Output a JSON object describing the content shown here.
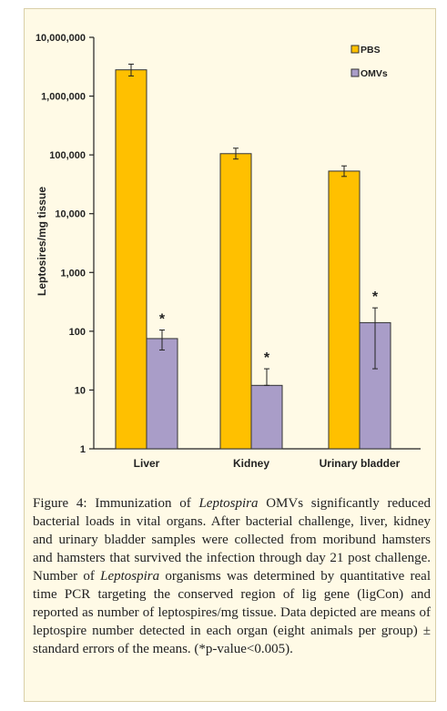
{
  "chart_data": {
    "type": "bar",
    "scale": "log",
    "ylabel": "Leptosires/mg tissue",
    "xlabel": "",
    "ylim": [
      1,
      10000000
    ],
    "yticks": [
      1,
      10,
      100,
      1000,
      10000,
      100000,
      1000000,
      10000000
    ],
    "ytick_labels": [
      "1",
      "10",
      "100",
      "1,000",
      "10,000",
      "100,000",
      "1,000,000",
      "10,000,000"
    ],
    "categories": [
      "Liver",
      "Kidney",
      "Urinary bladder"
    ],
    "series": [
      {
        "name": "PBS",
        "color": "#ffc000",
        "values": [
          2800000,
          105000,
          53000
        ],
        "err_low": [
          2200000,
          85000,
          43000
        ],
        "err_high": [
          3500000,
          130000,
          65000
        ]
      },
      {
        "name": "OMVs",
        "color": "#a99dc8",
        "values": [
          75,
          12,
          140
        ],
        "err_low": [
          48,
          12,
          23
        ],
        "err_high": [
          105,
          23,
          250
        ]
      }
    ],
    "annotations": [
      "*",
      "*",
      "*"
    ],
    "legend_position": "top-right"
  },
  "caption": {
    "label": "Figure 4:",
    "parts": [
      " Immunization of ",
      "Leptospira",
      " OMVs significantly reduced bacterial loads in vital organs. After bacterial challenge, liver, kidney and urinary bladder samples were collected from moribund hamsters and hamsters that survived the infection through day 21 post challenge. Number of ",
      "Leptospira",
      " organisms was determined by quantitative real time PCR targeting the conserved region of lig gene (ligCon) and reported as number of leptospires/mg tissue. Data depicted are means of leptospire number detected in each organ (eight animals per group) ± standard errors of the means. (*p-value<0.005)."
    ]
  }
}
